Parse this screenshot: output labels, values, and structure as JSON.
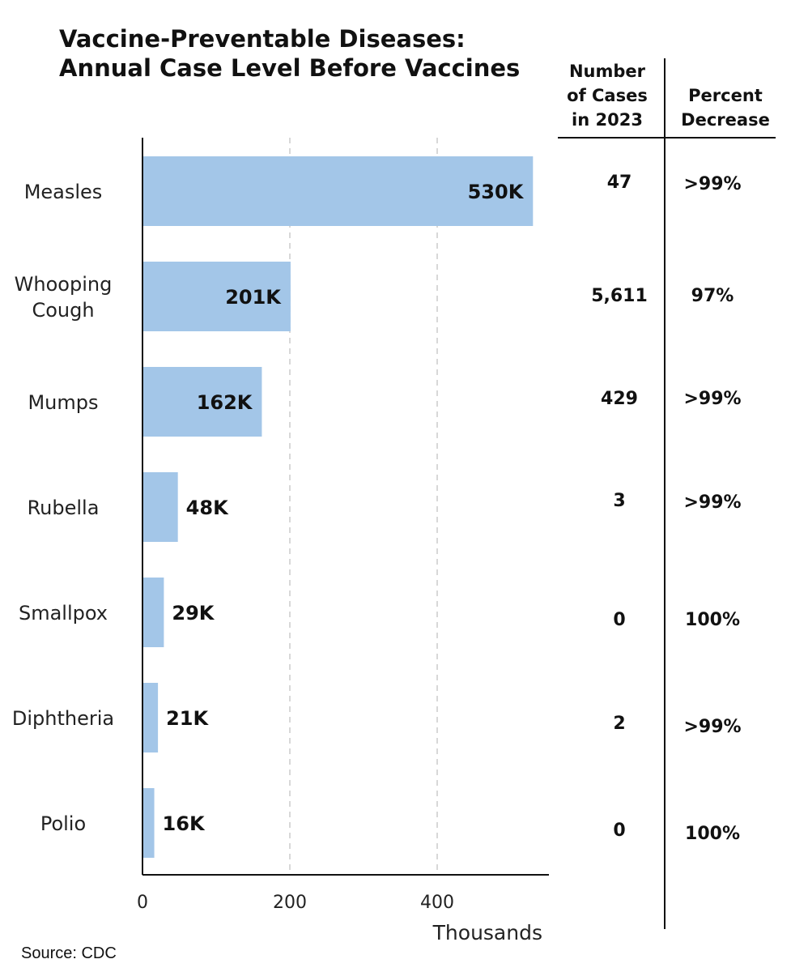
{
  "chart_data": {
    "type": "bar",
    "orientation": "horizontal",
    "title_lines": [
      "Vaccine-Preventable Diseases:",
      "Annual Case Level Before Vaccines"
    ],
    "categories": [
      [
        "Measles"
      ],
      [
        "Whooping",
        "Cough"
      ],
      [
        "Mumps"
      ],
      [
        "Rubella"
      ],
      [
        "Smallpox"
      ],
      [
        "Diphtheria"
      ],
      [
        "Polio"
      ]
    ],
    "values": [
      530,
      201,
      162,
      48,
      29,
      21,
      16
    ],
    "data_labels": [
      "530K",
      "201K",
      "162K",
      "48K",
      "29K",
      "21K",
      "16K"
    ],
    "xlabel": "Thousands",
    "xticks": [
      0,
      200,
      400
    ],
    "xlim": [
      0,
      552
    ],
    "grid": "vertical dashed",
    "bar_color": "#a3c6e8"
  },
  "table": {
    "headers": [
      [
        "Number",
        "of Cases",
        "in 2023"
      ],
      [
        "Percent",
        "Decrease"
      ]
    ],
    "cases_2023": [
      "47",
      "5,611",
      "429",
      "3",
      "0",
      "2",
      "0"
    ],
    "percent_decrease": [
      ">99%",
      "97%",
      ">99%",
      ">99%",
      "100%",
      ">99%",
      "100%"
    ]
  },
  "source": "Source: CDC"
}
